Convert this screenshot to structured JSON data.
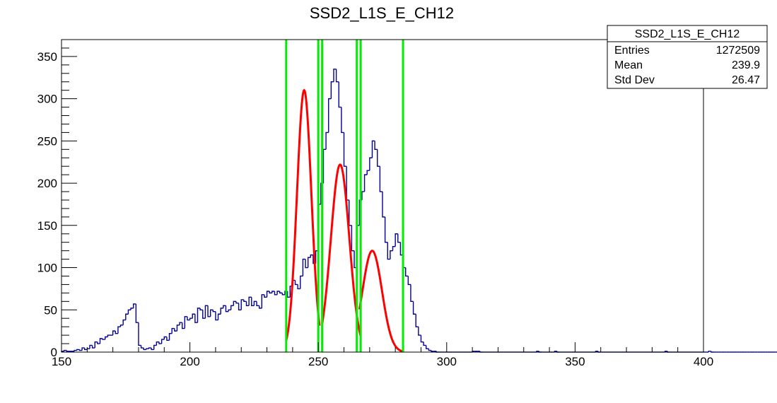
{
  "chart_data": {
    "type": "histogram",
    "title": "SSD2_L1S_E_CH12",
    "xlim": [
      150,
      400
    ],
    "ylim": [
      0,
      370
    ],
    "x_ticks": [
      150,
      200,
      250,
      300,
      350,
      400
    ],
    "y_ticks": [
      0,
      50,
      100,
      150,
      200,
      250,
      300,
      350
    ],
    "histogram": {
      "bin_width": 1,
      "x_start": 150,
      "values": [
        1,
        2,
        1,
        1,
        1,
        2,
        3,
        2,
        5,
        3,
        4,
        8,
        5,
        12,
        10,
        16,
        15,
        18,
        20,
        20,
        25,
        22,
        30,
        32,
        38,
        45,
        50,
        52,
        57,
        35,
        8,
        5,
        3,
        4,
        5,
        3,
        8,
        12,
        10,
        15,
        18,
        14,
        22,
        28,
        25,
        32,
        35,
        28,
        42,
        38,
        40,
        45,
        35,
        52,
        50,
        40,
        55,
        42,
        50,
        48,
        38,
        45,
        52,
        55,
        48,
        50,
        55,
        60,
        58,
        50,
        62,
        60,
        55,
        65,
        55,
        60,
        55,
        52,
        68,
        65,
        72,
        70,
        72,
        68,
        72,
        70,
        68,
        72,
        65,
        78,
        85,
        80,
        75,
        90,
        110,
        100,
        112,
        115,
        105,
        120,
        175,
        200,
        240,
        260,
        300,
        320,
        335,
        320,
        290,
        260,
        220,
        180,
        150,
        120,
        100,
        150,
        180,
        190,
        210,
        215,
        230,
        250,
        240,
        220,
        190,
        160,
        130,
        110,
        120,
        125,
        140,
        130,
        115,
        100,
        90,
        80,
        60,
        45,
        30,
        20,
        12,
        8,
        4,
        2,
        1,
        1,
        0,
        0,
        0,
        0,
        0,
        0,
        0,
        0,
        0,
        0,
        0,
        0,
        0,
        0,
        1,
        1,
        1,
        0,
        0,
        0,
        0,
        0,
        0,
        0,
        0,
        0,
        0,
        0,
        0,
        0,
        0,
        0,
        0,
        0,
        0,
        0,
        0,
        0,
        0,
        1,
        0,
        0,
        0,
        0,
        0,
        0,
        1,
        0,
        0,
        0,
        0,
        0,
        0,
        0,
        0,
        0,
        0,
        0,
        0,
        0,
        0,
        0,
        1,
        0,
        0,
        0,
        0,
        0,
        0,
        0,
        0,
        0,
        0,
        0,
        0,
        0,
        0,
        0,
        0,
        0,
        0,
        0,
        0,
        0,
        0,
        0,
        0,
        0,
        0,
        1,
        0,
        0,
        0,
        0,
        0,
        0,
        0,
        0,
        0,
        0,
        0,
        0,
        0,
        0,
        0,
        0,
        1,
        0,
        0,
        0,
        0,
        0,
        0,
        0,
        0,
        0,
        0,
        0,
        0,
        0,
        0,
        0,
        0,
        0,
        0,
        0,
        0,
        0,
        0,
        0,
        0,
        0,
        0,
        0,
        0,
        0,
        1,
        0,
        1,
        0,
        0,
        0,
        0,
        0,
        0,
        0,
        0,
        0,
        0,
        1
      ]
    },
    "fits": [
      {
        "range": [
          237.5,
          250.5
        ],
        "amp": 310,
        "mean": 244.5,
        "sigma": 2.8
      },
      {
        "range": [
          251.5,
          266.5
        ],
        "amp": 222,
        "mean": 258.5,
        "sigma": 3.6
      },
      {
        "range": [
          266.0,
          283.0
        ],
        "amp": 120,
        "mean": 271.0,
        "sigma": 3.8
      }
    ],
    "vertical_lines": [
      237.5,
      250.0,
      251.5,
      265.0,
      266.5,
      283.0
    ],
    "stats_box": {
      "title": "SSD2_L1S_E_CH12",
      "rows": [
        {
          "label": "Entries",
          "value": "1272509"
        },
        {
          "label": "Mean",
          "value": "239.9"
        },
        {
          "label": "Std Dev",
          "value": "26.47"
        }
      ]
    },
    "colors": {
      "histogram": "#000099",
      "fit": "#ff0000",
      "lines": "#00ee00",
      "axis": "#000000"
    }
  }
}
